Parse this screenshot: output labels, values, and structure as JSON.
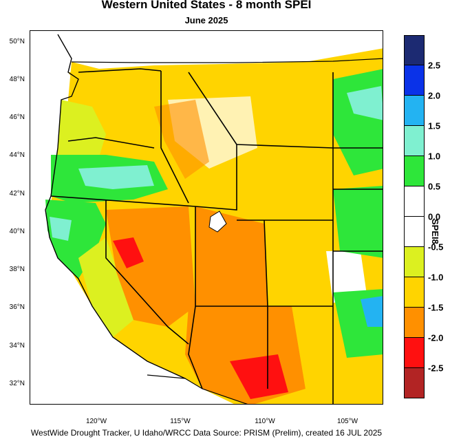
{
  "title": "Western United States - 8 month SPEI",
  "subtitle": "June 2025",
  "footer": "WestWide Drought Tracker, U Idaho/WRCC Data Source: PRISM (Prelim), created 16 JUL 2025",
  "axes": {
    "lat_labels": [
      "50°N",
      "48°N",
      "46°N",
      "44°N",
      "42°N",
      "40°N",
      "38°N",
      "36°N",
      "34°N",
      "32°N"
    ],
    "lon_labels": [
      "120°W",
      "115°W",
      "110°W",
      "105°W"
    ]
  },
  "colorbar": {
    "title": "SPEI8",
    "colors": [
      "#1c2a72",
      "#0a32e8",
      "#23b3f2",
      "#7ff0d0",
      "#2ee63a",
      "#ffffff",
      "#ffffff",
      "#dcf020",
      "#ffd400",
      "#ff9000",
      "#ff1010",
      "#b22424"
    ],
    "labels": [
      "2.5",
      "2.0",
      "1.5",
      "1.0",
      "0.5",
      "0.0",
      "-0.5",
      "-1.0",
      "-1.5",
      "-2.0",
      "-2.5"
    ]
  },
  "legend_colors": {
    "very_wet": "#1c2a72",
    "wet": "#0a32e8",
    "moderately_wet": "#23b3f2",
    "slightly_wet": "#7ff0d0",
    "near_normal_wet": "#2ee63a",
    "normal": "#ffffff",
    "slightly_dry": "#dcf020",
    "moderately_dry": "#ffd400",
    "severely_dry": "#ff9000",
    "extremely_dry": "#ff1010",
    "exceptionally_dry": "#b22424"
  }
}
